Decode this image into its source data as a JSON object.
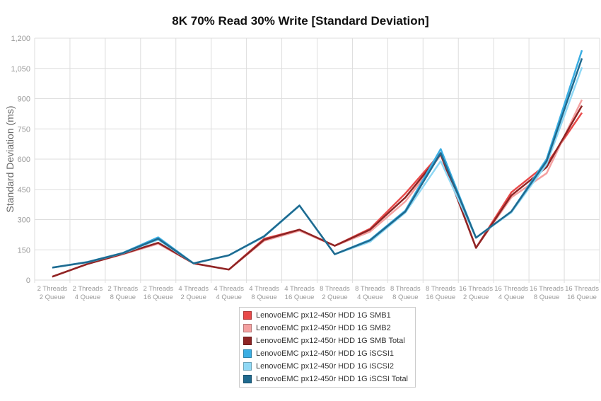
{
  "chart_data": {
    "type": "line",
    "title": "8K 70% Read 30% Write [Standard Deviation]",
    "xlabel": "",
    "ylabel": "Standard Deviation (ms)",
    "ylim": [
      0,
      1200
    ],
    "yticks": [
      "0",
      "150",
      "300",
      "450",
      "600",
      "750",
      "900",
      "1,050",
      "1,200"
    ],
    "ytick_values": [
      0,
      150,
      300,
      450,
      600,
      750,
      900,
      1050,
      1200
    ],
    "grid": true,
    "legend_position": "bottom",
    "categories": [
      [
        "2 Threads",
        "2 Queue"
      ],
      [
        "2 Threads",
        "4 Queue"
      ],
      [
        "2 Threads",
        "8 Queue"
      ],
      [
        "2 Threads",
        "16 Queue"
      ],
      [
        "4 Threads",
        "2 Queue"
      ],
      [
        "4 Threads",
        "4 Queue"
      ],
      [
        "4 Threads",
        "8 Queue"
      ],
      [
        "4 Threads",
        "16 Queue"
      ],
      [
        "8 Threads",
        "2 Queue"
      ],
      [
        "8 Threads",
        "4 Queue"
      ],
      [
        "8 Threads",
        "8 Queue"
      ],
      [
        "8 Threads",
        "16 Queue"
      ],
      [
        "16 Threads",
        "2 Queue"
      ],
      [
        "16 Threads",
        "4 Queue"
      ],
      [
        "16 Threads",
        "8 Queue"
      ],
      [
        "16 Threads",
        "16 Queue"
      ]
    ],
    "series": [
      {
        "name": "LenovoEMC px12-450r HDD 1G SMB1",
        "color": "#e84a4a",
        "values": [
          17,
          80,
          130,
          185,
          83,
          52,
          205,
          250,
          170,
          255,
          430,
          630,
          160,
          435,
          575,
          830
        ]
      },
      {
        "name": "LenovoEMC px12-450r HDD 1G SMB2",
        "color": "#f4a0a0",
        "values": [
          17,
          80,
          128,
          180,
          83,
          52,
          195,
          245,
          170,
          240,
          390,
          620,
          160,
          410,
          530,
          895
        ]
      },
      {
        "name": "LenovoEMC px12-450r HDD 1G SMB Total",
        "color": "#8e2424",
        "values": [
          17,
          80,
          130,
          185,
          83,
          52,
          200,
          250,
          170,
          250,
          410,
          625,
          160,
          420,
          560,
          865
        ]
      },
      {
        "name": "LenovoEMC px12-450r HDD 1G iSCSI1",
        "color": "#3aaee3",
        "values": [
          62,
          90,
          135,
          212,
          83,
          123,
          218,
          370,
          128,
          200,
          345,
          650,
          210,
          340,
          600,
          1140
        ]
      },
      {
        "name": "LenovoEMC px12-450r HDD 1G iSCSI2",
        "color": "#8fd8f5",
        "values": [
          62,
          88,
          133,
          200,
          83,
          122,
          215,
          368,
          128,
          190,
          335,
          590,
          210,
          335,
          575,
          1055
        ]
      },
      {
        "name": "LenovoEMC px12-450r HDD 1G iSCSI Total",
        "color": "#1f6a8f",
        "values": [
          62,
          89,
          134,
          205,
          83,
          123,
          217,
          370,
          128,
          197,
          340,
          630,
          210,
          340,
          590,
          1100
        ]
      }
    ]
  }
}
